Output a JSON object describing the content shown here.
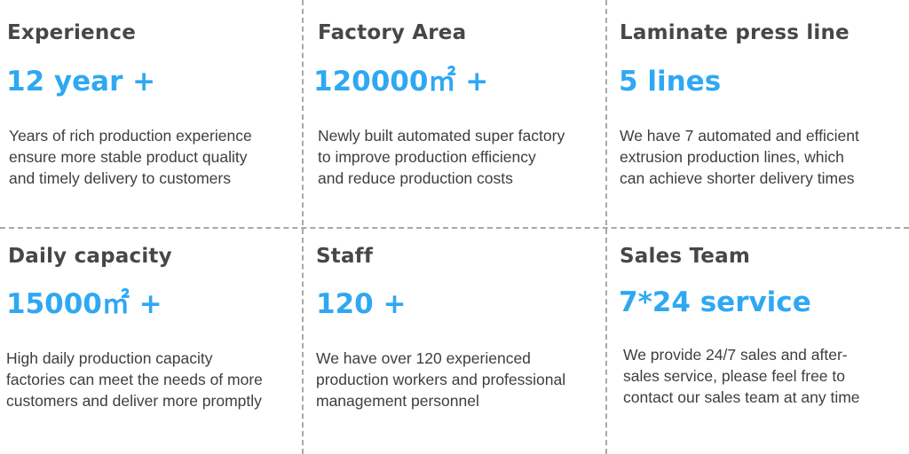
{
  "cells": [
    {
      "title": "Experience",
      "value": "12 year +",
      "lines": [
        "Years of rich production experience",
        "ensure more stable product quality",
        "and timely delivery to customers"
      ]
    },
    {
      "title": "Factory Area",
      "value": "120000㎡ +",
      "lines": [
        "Newly built automated super factory",
        "to improve production efficiency",
        "and reduce production costs"
      ]
    },
    {
      "title": "Laminate press line",
      "value": "5 lines",
      "lines": [
        "We have 7 automated and efficient",
        "extrusion production lines, which",
        "can achieve shorter delivery times"
      ]
    },
    {
      "title": "Daily capacity",
      "value": "15000㎡ +",
      "lines": [
        "High daily production capacity",
        "factories can meet the needs of more",
        "customers and deliver more promptly"
      ]
    },
    {
      "title": "Staff",
      "value": "120 +",
      "lines": [
        "We have over 120 experienced",
        "production workers and professional",
        "management personnel"
      ]
    },
    {
      "title": "Sales Team",
      "value": "7*24 service",
      "lines": [
        "We provide 24/7 sales and after-",
        "sales service, please feel free to",
        "contact our sales team at any time"
      ]
    }
  ],
  "colors": {
    "heading": "#474747",
    "accent": "#2fa8f2",
    "body": "#3e3e3e",
    "divider": "#a8a8a8"
  }
}
